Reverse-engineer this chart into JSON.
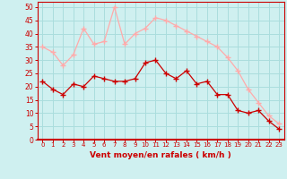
{
  "x": [
    0,
    1,
    2,
    3,
    4,
    5,
    6,
    7,
    8,
    9,
    10,
    11,
    12,
    13,
    14,
    15,
    16,
    17,
    18,
    19,
    20,
    21,
    22,
    23
  ],
  "wind_avg": [
    22,
    19,
    17,
    21,
    20,
    24,
    23,
    22,
    22,
    23,
    29,
    30,
    25,
    23,
    26,
    21,
    22,
    17,
    17,
    11,
    10,
    11,
    7,
    4
  ],
  "wind_gust": [
    35,
    33,
    28,
    32,
    42,
    36,
    37,
    50,
    36,
    40,
    42,
    46,
    45,
    43,
    41,
    39,
    37,
    35,
    31,
    26,
    19,
    14,
    9,
    6
  ],
  "bg_color": "#cff0f0",
  "grid_color": "#aadddd",
  "line_avg_color": "#cc0000",
  "line_gust_color": "#ffaaaa",
  "xlabel": "Vent moyen/en rafales ( km/h )",
  "xlabel_color": "#cc0000",
  "tick_color": "#cc0000",
  "spine_color": "#cc0000",
  "ylim": [
    0,
    52
  ],
  "yticks": [
    0,
    5,
    10,
    15,
    20,
    25,
    30,
    35,
    40,
    45,
    50
  ],
  "xlim": [
    -0.5,
    23.5
  ]
}
